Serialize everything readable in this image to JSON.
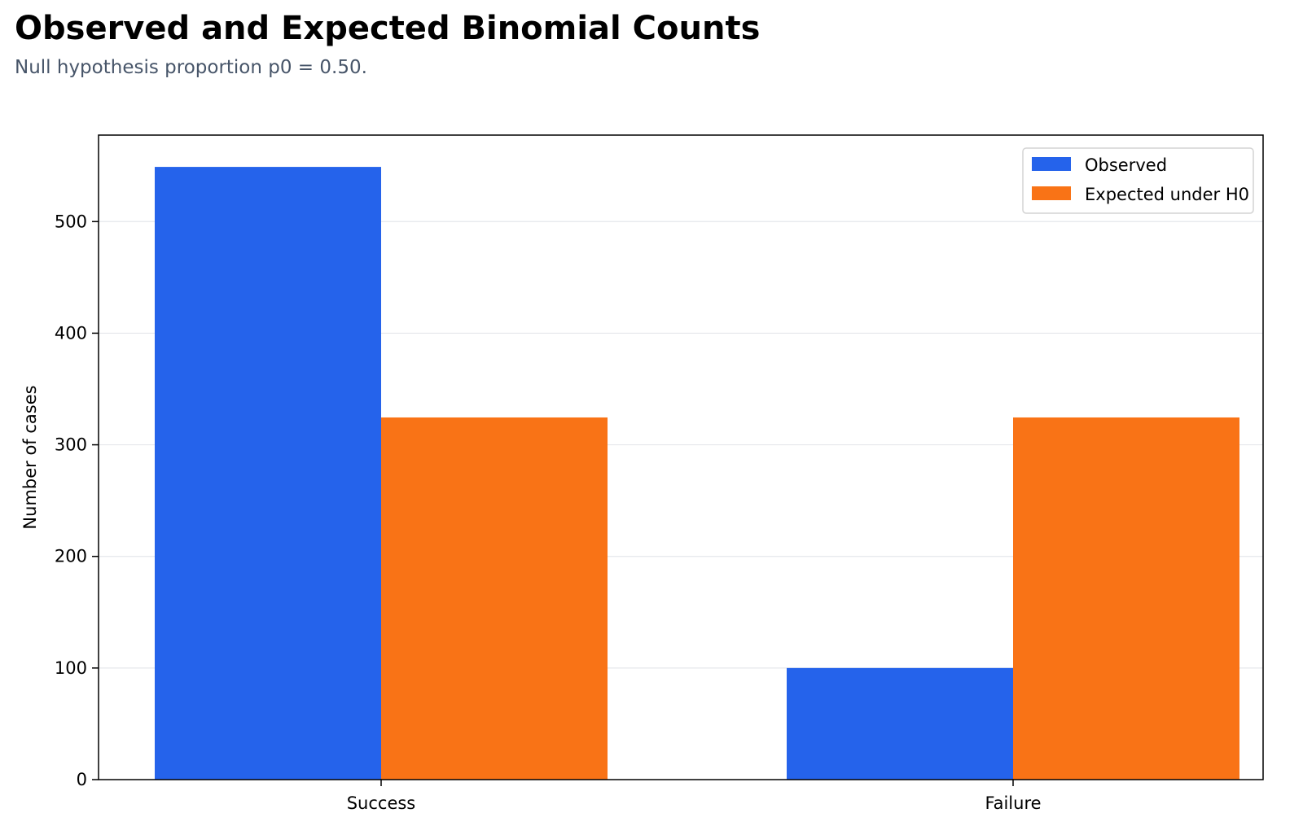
{
  "header": {
    "title": "Observed and Expected Binomial Counts",
    "subtitle": "Null hypothesis proportion p0 = 0.50."
  },
  "chart_data": {
    "type": "bar",
    "title": "Observed and Expected Binomial Counts",
    "subtitle": "Null hypothesis proportion p0 = 0.50.",
    "categories": [
      "Success",
      "Failure"
    ],
    "series": [
      {
        "name": "Observed",
        "values": [
          549,
          100
        ],
        "color": "#2563eb"
      },
      {
        "name": "Expected under H0",
        "values": [
          324.5,
          324.5
        ],
        "color": "#f97316"
      }
    ],
    "xlabel": "",
    "ylabel": "Number of cases",
    "ylim": [
      0,
      577.5
    ],
    "yticks": [
      0,
      100,
      200,
      300,
      400,
      500
    ],
    "grid": "y",
    "legend_position": "top-right"
  }
}
